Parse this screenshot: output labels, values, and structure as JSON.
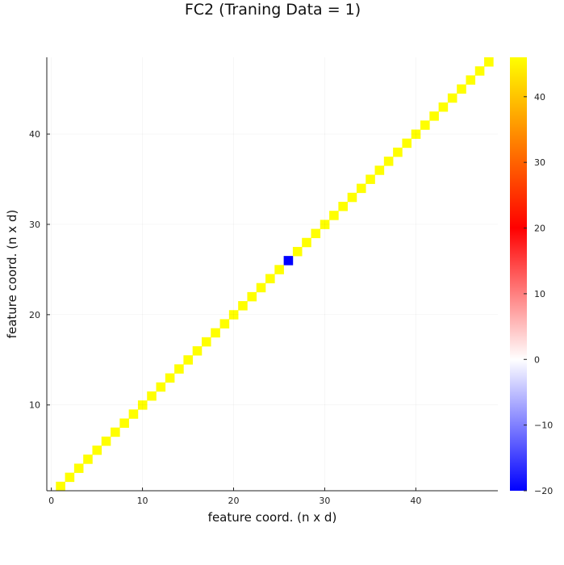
{
  "chart_data": {
    "type": "heatmap",
    "title": "FC2 (Traning Data = 1)",
    "xlabel": "feature coord. (n x d)",
    "ylabel": "feature coord. (n x d)",
    "xlim": [
      0.5,
      48.5
    ],
    "ylim": [
      0.5,
      48.5
    ],
    "n": 48,
    "xticks": [
      0,
      10,
      20,
      30,
      40
    ],
    "yticks": [
      10,
      20,
      30,
      40
    ],
    "background_value": 0,
    "diagonal_value": 46,
    "anomalies": [
      {
        "x": 26,
        "y": 26,
        "value": -20
      }
    ],
    "grid": true,
    "colorbar": {
      "min": -20,
      "max": 46,
      "ticks": [
        -20,
        -10,
        0,
        10,
        20,
        30,
        40
      ],
      "colormap": [
        {
          "value": -20,
          "color": "#0000ff"
        },
        {
          "value": 0,
          "color": "#ffffff"
        },
        {
          "value": 20,
          "color": "#ff0000"
        },
        {
          "value": 46,
          "color": "#ffff00"
        }
      ]
    }
  }
}
